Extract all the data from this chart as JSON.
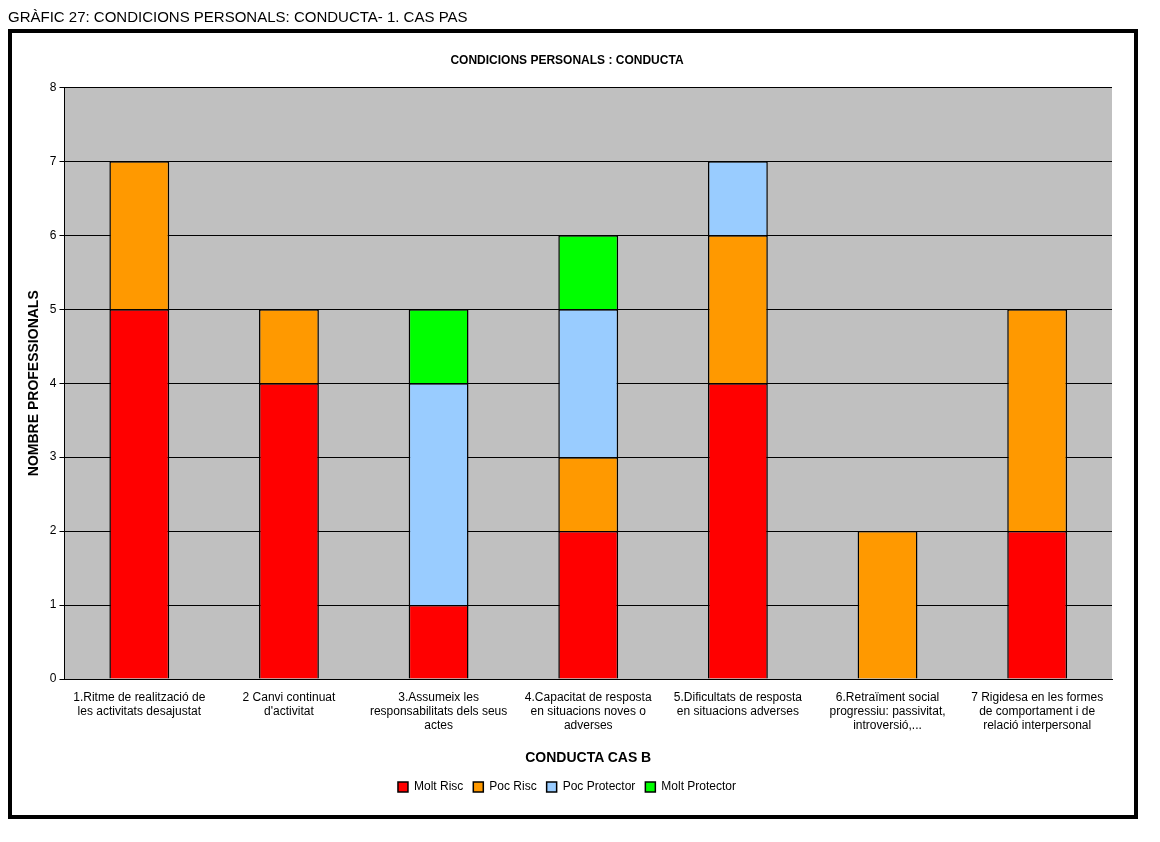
{
  "chart_data": {
    "type": "bar",
    "title": "CONDICIONS PERSONALS : CONDUCTA",
    "xlabel": "CONDUCTA CAS B",
    "ylabel": "NOMBRE PROFESSIONALS",
    "annotations": [
      "GRÀFIC 27: CONDICIONS PERSONALS: CONDUCTA- 1. CAS PAS"
    ],
    "categories": [
      "1.Ritme de realització de les activitats desajustat",
      "2 Canvi continuat d'activitat",
      "3.Assumeix les responsabilitats dels seus actes",
      "4.Capacitat de resposta en situacions noves o adverses",
      "5.Dificultats de resposta en situacions adverses",
      "6.Retraïment social progressiu: passivitat, introversió,...",
      "7 Rigidesa en les formes de comportament i de relació interpersonal"
    ],
    "series": [
      {
        "name": "Molt Risc",
        "color": "#ff0000",
        "values": [
          5,
          4,
          1,
          2,
          4,
          0,
          2
        ]
      },
      {
        "name": "Poc Risc",
        "color": "#ff9900",
        "values": [
          2,
          1,
          0,
          1,
          2,
          2,
          3
        ]
      },
      {
        "name": "Poc Protector",
        "color": "#99ccff",
        "values": [
          0,
          0,
          3,
          2,
          1,
          0,
          0
        ]
      },
      {
        "name": "Molt Protector",
        "color": "#00ff00",
        "values": [
          0,
          0,
          1,
          1,
          0,
          0,
          0
        ]
      }
    ],
    "stacked": true,
    "ylim": [
      0,
      8
    ],
    "yticks": [
      0,
      1,
      2,
      3,
      4,
      5,
      6,
      7,
      8
    ],
    "grid": "y",
    "legend": "bottom"
  }
}
